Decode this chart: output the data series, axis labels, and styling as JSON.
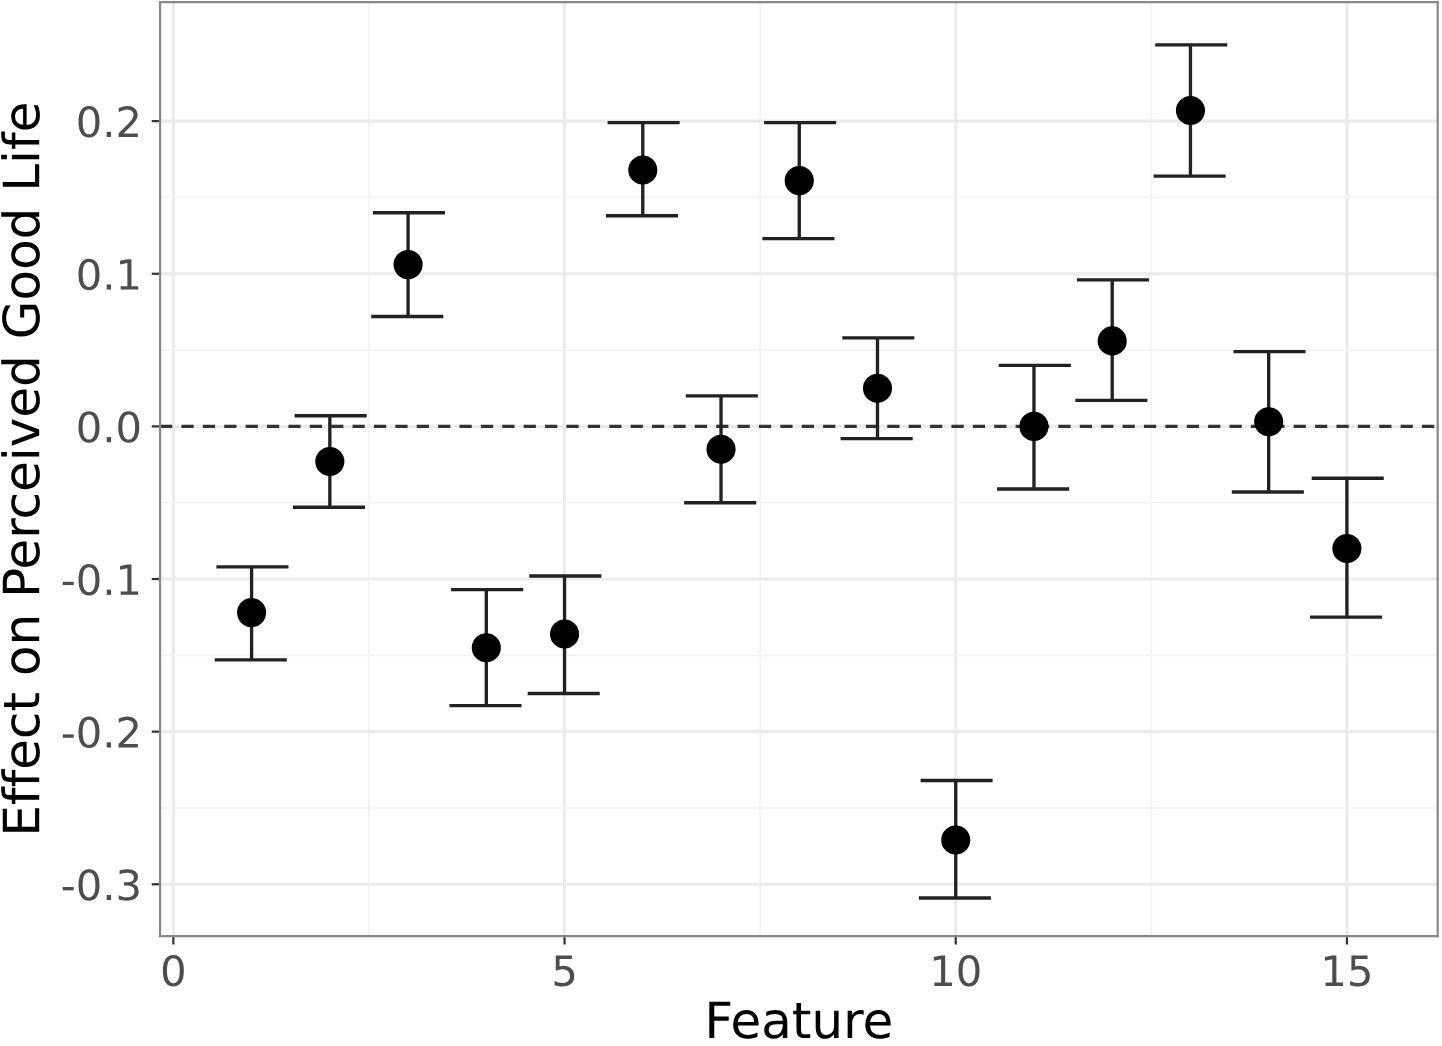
{
  "chart_data": {
    "type": "scatter",
    "xlabel": "Feature",
    "ylabel": "Effect on Perceived Good Life",
    "x": [
      1,
      2,
      3,
      4,
      5,
      6,
      7,
      8,
      9,
      10,
      11,
      12,
      13,
      14,
      15
    ],
    "color": "#000000",
    "values": [
      -0.122,
      -0.023,
      0.106,
      -0.145,
      -0.136,
      0.168,
      -0.015,
      0.161,
      0.025,
      -0.271,
      0.0,
      0.056,
      0.207,
      0.003,
      -0.08
    ],
    "errors": [
      [
        -0.153,
        -0.092
      ],
      [
        -0.053,
        0.007
      ],
      [
        0.072,
        0.14
      ],
      [
        -0.183,
        -0.107
      ],
      [
        -0.175,
        -0.098
      ],
      [
        0.138,
        0.199
      ],
      [
        -0.05,
        0.02
      ],
      [
        0.123,
        0.199
      ],
      [
        -0.008,
        0.058
      ],
      [
        -0.309,
        -0.232
      ],
      [
        -0.041,
        0.04
      ],
      [
        0.017,
        0.096
      ],
      [
        0.164,
        0.25
      ],
      [
        -0.043,
        0.049
      ],
      [
        -0.125,
        -0.034
      ]
    ],
    "xlim": [
      -0.17,
      16.16
    ],
    "ylim": [
      -0.334,
      0.278
    ],
    "xticks": [
      0,
      5,
      10,
      15
    ],
    "yticks": [
      {
        "value": -0.3,
        "label": "-0.3"
      },
      {
        "value": -0.2,
        "label": "-0.2"
      },
      {
        "value": -0.1,
        "label": "-0.1"
      },
      {
        "value": 0,
        "label": "0.0"
      },
      {
        "value": 0.1,
        "label": "0.1"
      },
      {
        "value": 0.2,
        "label": "0.2"
      }
    ],
    "ref_lines": [
      {
        "axis": "y",
        "value": 0,
        "line_style": "dashed",
        "color": "#333333"
      }
    ],
    "grid": true,
    "marker": "circle"
  }
}
